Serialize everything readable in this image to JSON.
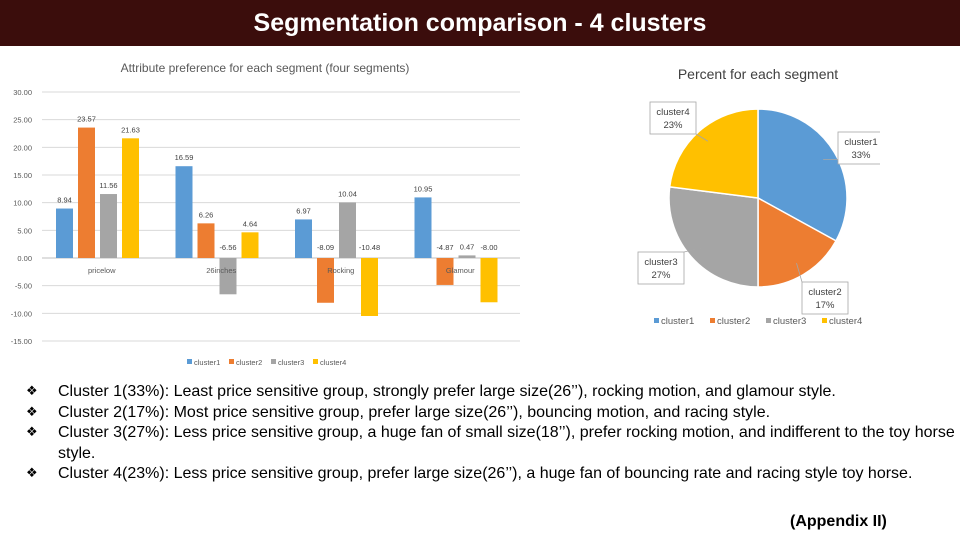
{
  "slide": {
    "title": "Segmentation comparison - 4 clusters",
    "appendix": "(Appendix II)",
    "bullet_marker": "❖",
    "bullets": [
      "Cluster 1(33%): Least price sensitive group, strongly prefer large size(26’’), rocking motion, and glamour style.",
      "Cluster 2(17%):  Most price sensitive group, prefer large size(26’’), bouncing motion, and racing style.",
      "Cluster 3(27%): Less price sensitive group, a huge fan of small size(18’’), prefer rocking motion, and indifferent to the toy horse style.",
      "Cluster 4(23%): Less price sensitive group, prefer large size(26’’), a huge fan of bouncing rate and racing style toy horse."
    ]
  },
  "chart_data": [
    {
      "type": "bar",
      "title": "Attribute preference for each segment (four segments)",
      "categories": [
        "pricelow",
        "26inches",
        "Rocking",
        "Glamour"
      ],
      "series": [
        {
          "name": "cluster1",
          "values": [
            8.94,
            16.59,
            6.97,
            10.95
          ],
          "labels": [
            "8.94",
            "16.59",
            "6.97",
            "10.95"
          ],
          "color": "#5b9bd5"
        },
        {
          "name": "cluster2",
          "values": [
            23.57,
            6.26,
            -8.09,
            -4.87
          ],
          "labels": [
            "23.57",
            "6.26",
            "-8.09",
            "-4.87"
          ],
          "color": "#ed7d31"
        },
        {
          "name": "cluster3",
          "values": [
            11.56,
            -6.56,
            10.04,
            0.47
          ],
          "labels": [
            "11.56",
            "-6.56",
            "10.04",
            "0.47"
          ],
          "color": "#a5a5a5"
        },
        {
          "name": "cluster4",
          "values": [
            21.63,
            4.64,
            -10.48,
            -8.0
          ],
          "labels": [
            "21.63",
            "4.64",
            "-10.48",
            "-8.00"
          ],
          "color": "#ffc000"
        }
      ],
      "ylim": [
        -15,
        30
      ],
      "yticks": [
        30,
        25,
        20,
        15,
        10,
        5,
        0,
        -5,
        -10,
        -15
      ],
      "ytick_labels": [
        "30.00",
        "25.00",
        "20.00",
        "15.00",
        "10.00",
        "5.00",
        "0.00",
        "-5.00",
        "-10.00",
        "-15.00"
      ],
      "grid": true,
      "legend": "bottom"
    },
    {
      "type": "pie",
      "title": "Percent for each segment",
      "categories": [
        "cluster1",
        "cluster2",
        "cluster3",
        "cluster4"
      ],
      "values": [
        33,
        17,
        27,
        23
      ],
      "labels": [
        "33%",
        "17%",
        "27%",
        "23%"
      ],
      "colors": [
        "#5b9bd5",
        "#ed7d31",
        "#a5a5a5",
        "#ffc000"
      ],
      "legend": "bottom"
    }
  ]
}
